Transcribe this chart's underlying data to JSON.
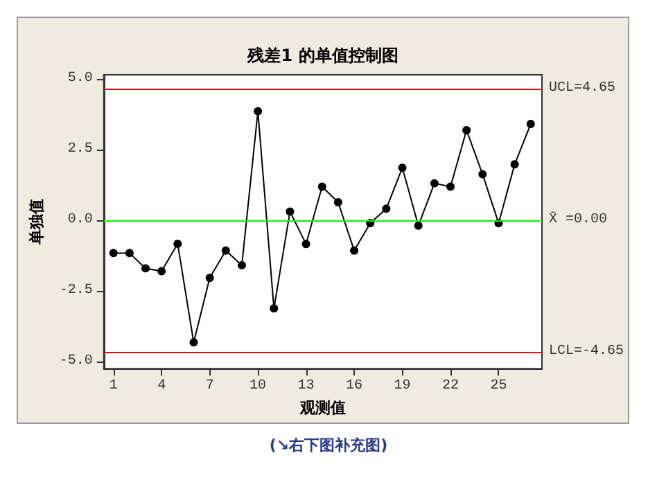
{
  "chart_data": {
    "type": "line",
    "title": "残差1 的单值控制图",
    "xlabel": "观测值",
    "ylabel": "单独值",
    "x": [
      1,
      2,
      3,
      4,
      5,
      6,
      7,
      8,
      9,
      10,
      11,
      12,
      13,
      14,
      15,
      16,
      17,
      18,
      19,
      20,
      21,
      22,
      23,
      24,
      25,
      26,
      27
    ],
    "series": [
      {
        "color": "#000000",
        "values": [
          -1.16,
          -1.16,
          -1.7,
          -1.8,
          -0.83,
          -4.32,
          -2.04,
          -1.07,
          -1.59,
          3.86,
          -3.12,
          0.31,
          -0.84,
          1.19,
          0.64,
          -1.07,
          -0.1,
          0.41,
          1.86,
          -0.19,
          1.31,
          1.19,
          3.19,
          1.63,
          -0.1,
          1.98,
          3.41
        ]
      }
    ],
    "xlim": [
      0.4,
      27.7
    ],
    "xticks": [
      1,
      4,
      7,
      10,
      13,
      16,
      19,
      22,
      25
    ],
    "ylim": [
      -5.25,
      5.15
    ],
    "yticks": [
      {
        "value": -5,
        "label": "-5.0"
      },
      {
        "value": -2.5,
        "label": "-2.5"
      },
      {
        "value": 0,
        "label": "0.0"
      },
      {
        "value": 2.5,
        "label": "2.5"
      },
      {
        "value": 5,
        "label": "5.0"
      }
    ],
    "ref_lines": [
      {
        "axis": "y",
        "value": 4.65,
        "label": "UCL=4.65",
        "color": "#ff0000"
      },
      {
        "axis": "y",
        "value": 0,
        "label": "X̄ =0.00",
        "color": "#00ff00"
      },
      {
        "axis": "y",
        "value": -4.65,
        "label": "LCL=-4.65",
        "color": "#ff0000"
      }
    ],
    "annotations": [
      "(↘右下图补充图)"
    ],
    "marker": "circle",
    "line_style": "solid",
    "grid": false
  }
}
